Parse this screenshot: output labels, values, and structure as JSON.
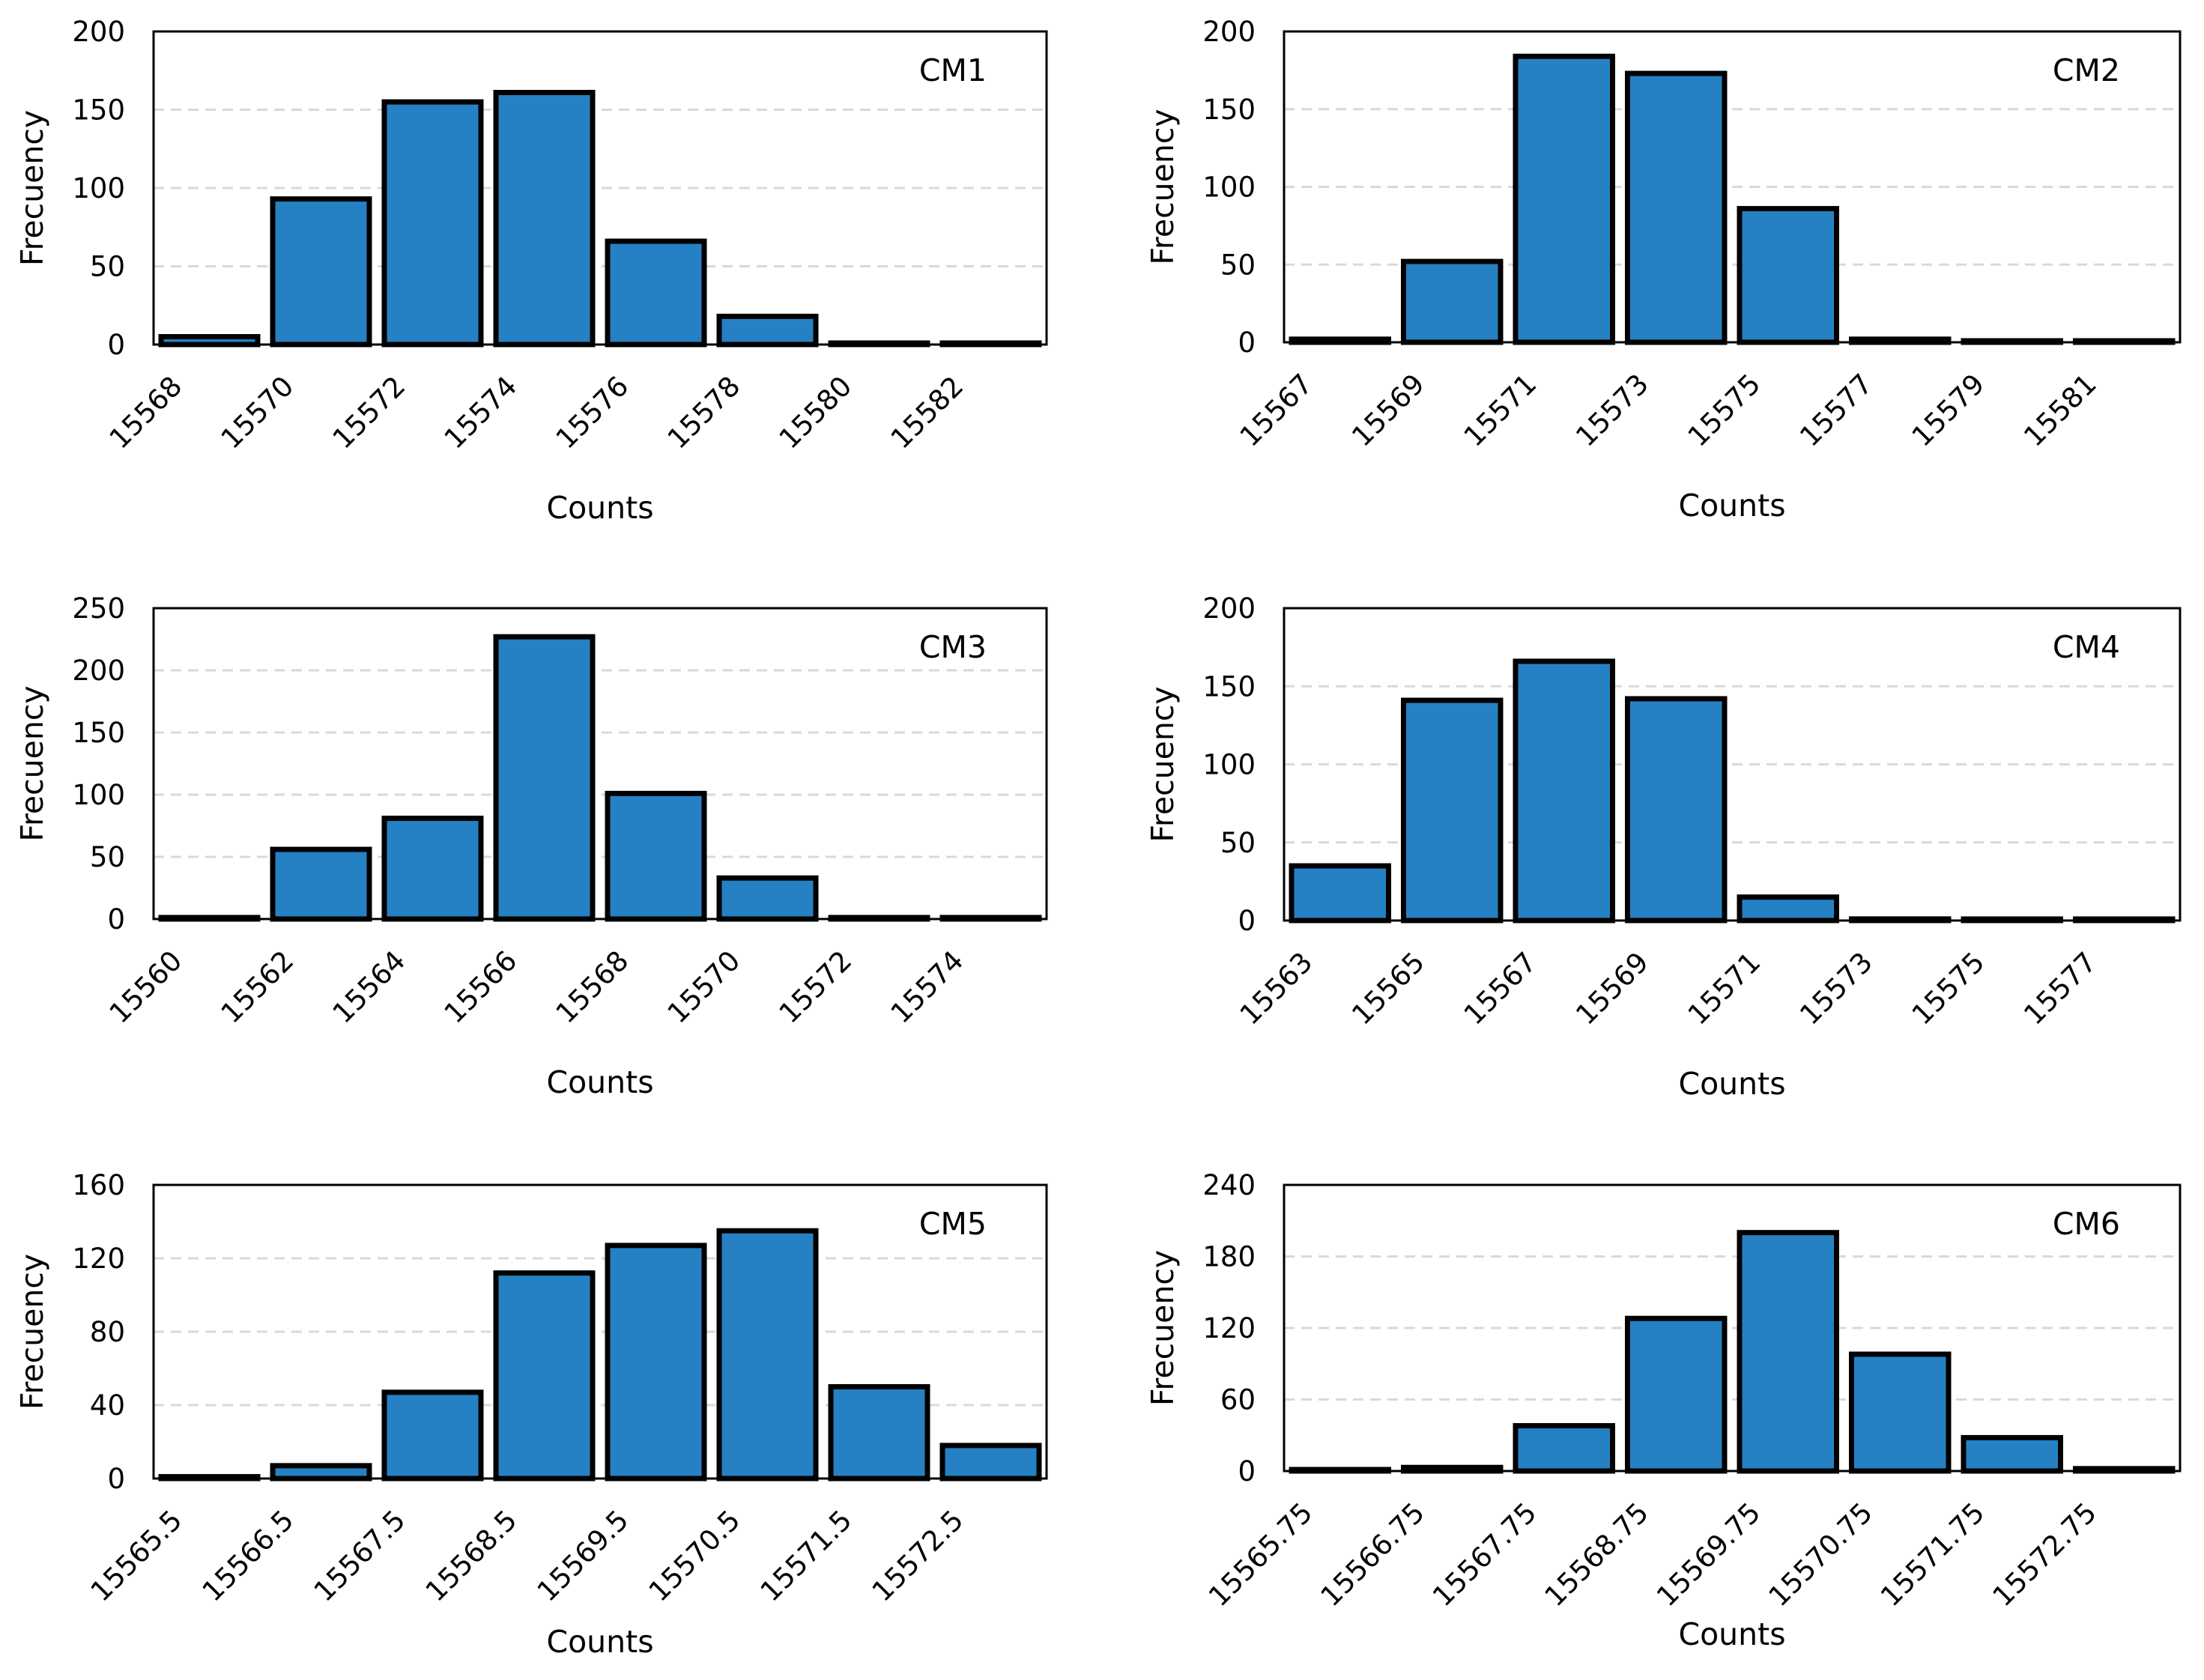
{
  "chart_data": [
    {
      "type": "bar",
      "panel_label": "CM1",
      "xlabel": "Counts",
      "ylabel": "Frecuency",
      "ylim": [
        0,
        200
      ],
      "yticks": [
        0,
        50,
        100,
        150,
        200
      ],
      "categories": [
        "15568",
        "15570",
        "15572",
        "15574",
        "15576",
        "15578",
        "15580",
        "15582"
      ],
      "values": [
        5,
        93,
        155,
        161,
        66,
        18,
        0,
        0
      ],
      "grid": true
    },
    {
      "type": "bar",
      "panel_label": "CM2",
      "xlabel": "Counts",
      "ylabel": "Frecuency",
      "ylim": [
        0,
        200
      ],
      "yticks": [
        0,
        50,
        100,
        150,
        200
      ],
      "categories": [
        "15567",
        "15569",
        "15571",
        "15573",
        "15575",
        "15577",
        "15579",
        "15581"
      ],
      "values": [
        2,
        52,
        184,
        173,
        86,
        2,
        0,
        0
      ],
      "grid": true
    },
    {
      "type": "bar",
      "panel_label": "CM3",
      "xlabel": "Counts",
      "ylabel": "Frecuency",
      "ylim": [
        0,
        250
      ],
      "yticks": [
        0,
        50,
        100,
        150,
        200,
        250
      ],
      "categories": [
        "15560",
        "15562",
        "15564",
        "15566",
        "15568",
        "15570",
        "15572",
        "15574"
      ],
      "values": [
        1,
        56,
        81,
        227,
        101,
        33,
        0,
        0
      ],
      "grid": true
    },
    {
      "type": "bar",
      "panel_label": "CM4",
      "xlabel": "Counts",
      "ylabel": "Frecuency",
      "ylim": [
        0,
        200
      ],
      "yticks": [
        0,
        50,
        100,
        150,
        200
      ],
      "categories": [
        "15563",
        "15565",
        "15567",
        "15569",
        "15571",
        "15573",
        "15575",
        "15577"
      ],
      "values": [
        35,
        141,
        166,
        142,
        15,
        1,
        0,
        0
      ],
      "grid": true
    },
    {
      "type": "bar",
      "panel_label": "CM5",
      "xlabel": "Counts",
      "ylabel": "Frecuency",
      "ylim": [
        0,
        160
      ],
      "yticks": [
        0,
        40,
        80,
        120,
        160
      ],
      "categories": [
        "15565.5",
        "15566.5",
        "15567.5",
        "15568.5",
        "15569.5",
        "15570.5",
        "15571.5",
        "15572.5"
      ],
      "values": [
        1,
        7,
        47,
        112,
        127,
        135,
        50,
        18
      ],
      "grid": true
    },
    {
      "type": "bar",
      "panel_label": "CM6",
      "xlabel": "Counts",
      "ylabel": "Frecuency",
      "ylim": [
        0,
        240
      ],
      "yticks": [
        0,
        60,
        120,
        180,
        240
      ],
      "categories": [
        "15565.75",
        "15566.75",
        "15567.75",
        "15568.75",
        "15569.75",
        "15570.75",
        "15571.75",
        "15572.75"
      ],
      "values": [
        1,
        3,
        38,
        128,
        200,
        98,
        28,
        2
      ],
      "grid": true
    }
  ]
}
